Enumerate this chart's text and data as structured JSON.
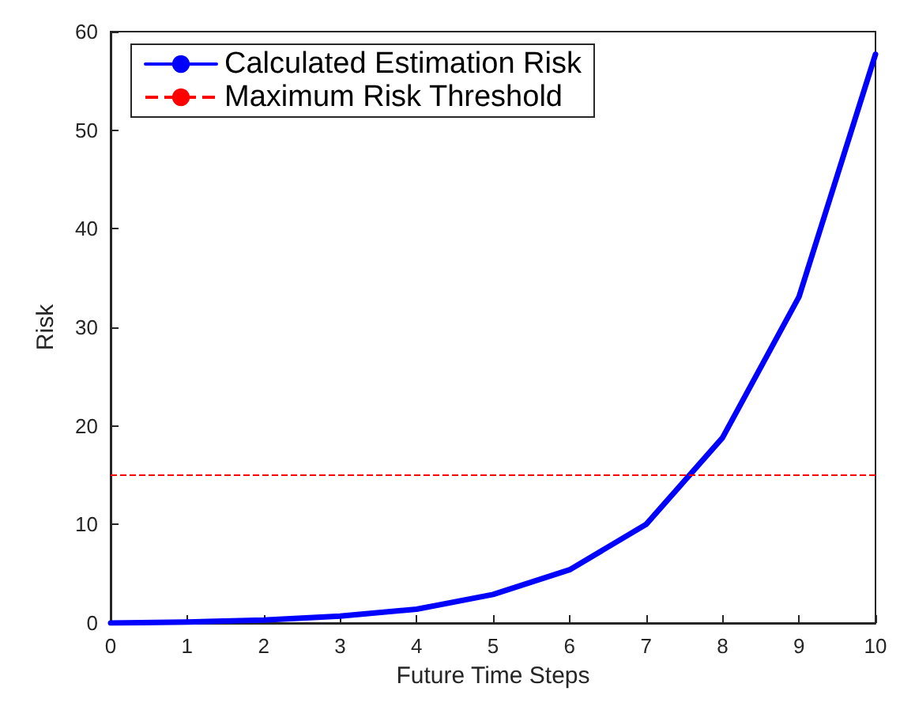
{
  "chart_data": {
    "type": "line",
    "xlabel": "Future Time Steps",
    "ylabel": "Risk",
    "x": [
      0,
      1,
      2,
      3,
      4,
      5,
      6,
      7,
      8,
      9,
      10
    ],
    "series": [
      {
        "name": "Calculated Estimation Risk",
        "color": "#0000ff",
        "values": [
          0,
          0.1,
          0.3,
          0.7,
          1.4,
          2.9,
          5.4,
          10,
          18.8,
          33.1,
          57.7
        ]
      }
    ],
    "ref_lines": [
      {
        "axis": "y",
        "value": 15,
        "label": "Maximum Risk Threshold",
        "color": "#ff0000",
        "line_style": "dashed"
      }
    ],
    "xlim": [
      0,
      10
    ],
    "xticks": [
      0,
      1,
      2,
      3,
      4,
      5,
      6,
      7,
      8,
      9,
      10
    ],
    "ylim": [
      0,
      60
    ],
    "yticks": [
      0,
      10,
      20,
      30,
      40,
      50,
      60
    ],
    "grid": false,
    "legend": "top left",
    "marker": "none",
    "line_style": "solid"
  }
}
